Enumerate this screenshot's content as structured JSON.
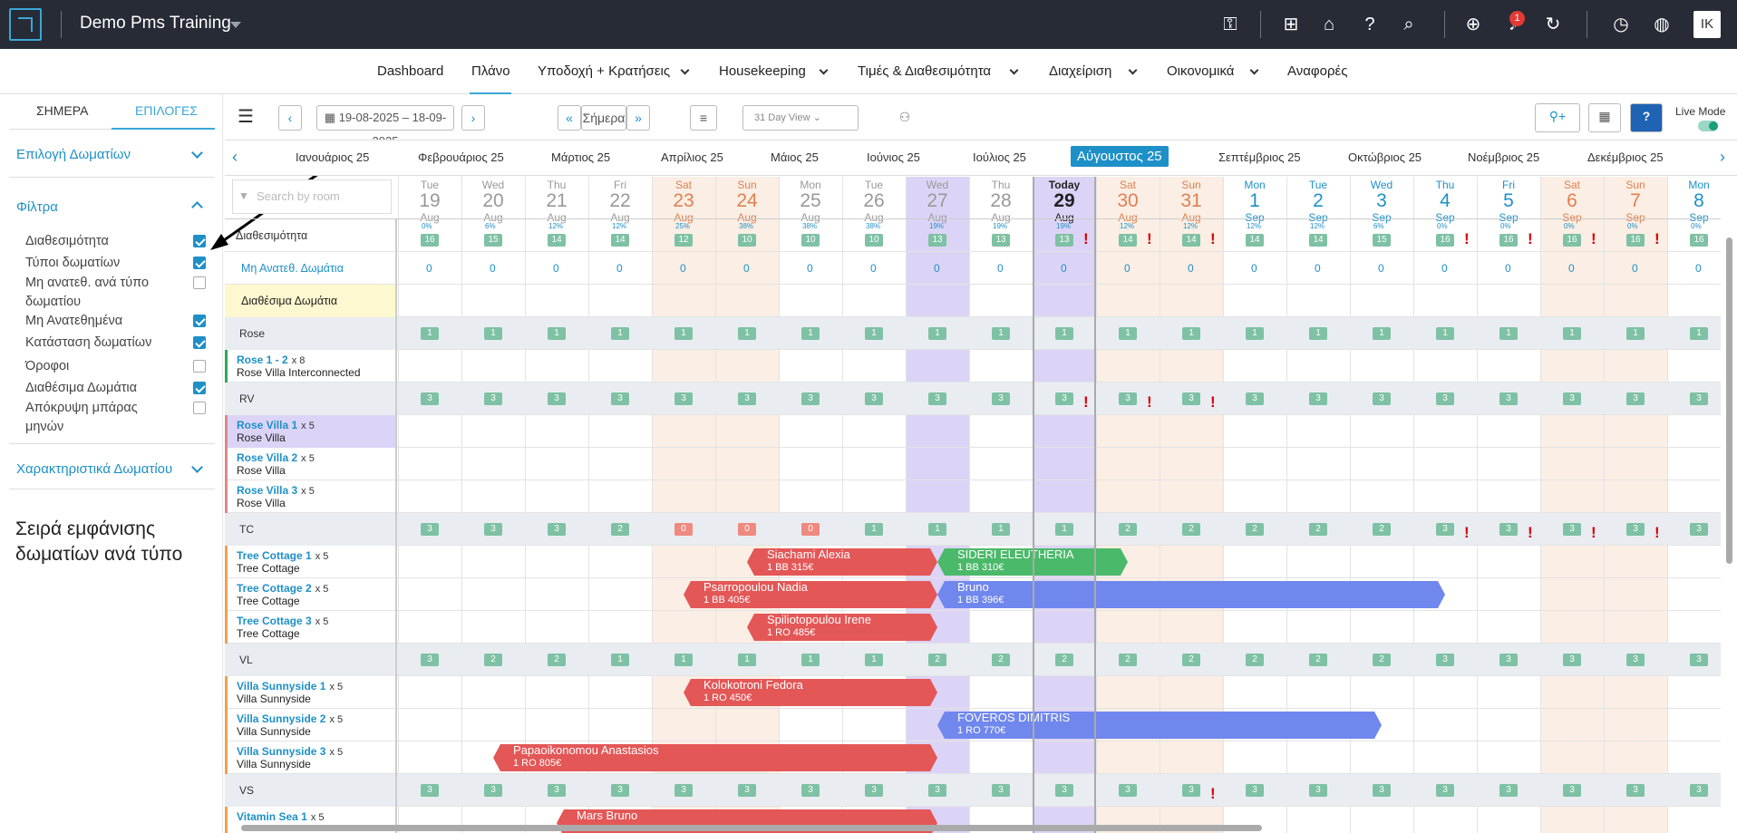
{
  "app": {
    "title": "Demo Pms Training",
    "user_initials": "IK",
    "notifications": "1"
  },
  "icons": [
    "key-icon",
    "apps-icon",
    "store-icon",
    "help-icon",
    "search-icon",
    "add-icon",
    "bell-icon",
    "refresh-icon",
    "history-icon",
    "globe-icon"
  ],
  "nav": {
    "items": [
      "Dashboard",
      "Πλάνο",
      "Υποδοχή + Κρατήσεις",
      "Housekeeping",
      "Τιμές & Διαθεσιμότητα",
      "Διαχείριση",
      "Οικονομικά",
      "Αναφορές"
    ]
  },
  "sidebar": {
    "tab_today": "ΣΗΜΕΡΑ",
    "tab_options": "ΕΠΙΛΟΓΕΣ",
    "room_select": "Επιλογή Δωματίων",
    "filters": "Φίλτρα",
    "room_features": "Χαρακτηριστικά Δωματίου",
    "filter_items": [
      {
        "label": "Διαθεσιμότητα",
        "on": true
      },
      {
        "label": "Τύποι δωματίων",
        "on": true
      },
      {
        "label": "Μη ανατεθ. ανά τύπο δωματίου",
        "on": false
      },
      {
        "label": "Μη Ανατεθημένα",
        "on": true
      },
      {
        "label": "Κατάσταση δωματίων",
        "on": true
      },
      {
        "label": "Όροφοι",
        "on": false
      },
      {
        "label": "Διαθέσιμα Δωμάτια",
        "on": true
      },
      {
        "label": "Απόκρυψη μπάρας μηνών",
        "on": false
      }
    ]
  },
  "annotation": "Σειρά εμφάνισης δωματίων ανά τύπο",
  "toolbar": {
    "date_range": "19-08-2025 – 18-09-2025",
    "today": "Σήμερα",
    "view": "31 Day View",
    "live_mode": "Live Mode"
  },
  "months": [
    "Ιανουάριος 25",
    "Φεβρουάριος 25",
    "Μάρτιος 25",
    "Απρίλιος 25",
    "Μάιος 25",
    "Ιούνιος 25",
    "Ιούλιος 25",
    "Αύγουστος 25",
    "Σεπτέμβριος 25",
    "Οκτώβριος 25",
    "Νοέμβριος 25",
    "Δεκέμβριος 25"
  ],
  "search_placeholder": "Search by room",
  "days": [
    {
      "d": "Tue",
      "n": "19",
      "m": "Aug"
    },
    {
      "d": "Wed",
      "n": "20",
      "m": "Aug"
    },
    {
      "d": "Thu",
      "n": "21",
      "m": "Aug"
    },
    {
      "d": "Fri",
      "n": "22",
      "m": "Aug"
    },
    {
      "d": "Sat",
      "n": "23",
      "m": "Aug"
    },
    {
      "d": "Sun",
      "n": "24",
      "m": "Aug"
    },
    {
      "d": "Mon",
      "n": "25",
      "m": "Aug"
    },
    {
      "d": "Tue",
      "n": "26",
      "m": "Aug"
    },
    {
      "d": "Wed",
      "n": "27",
      "m": "Aug"
    },
    {
      "d": "Thu",
      "n": "28",
      "m": "Aug"
    },
    {
      "d": "Today",
      "n": "29",
      "m": "Aug"
    },
    {
      "d": "Sat",
      "n": "30",
      "m": "Aug"
    },
    {
      "d": "Sun",
      "n": "31",
      "m": "Aug"
    },
    {
      "d": "Mon",
      "n": "1",
      "m": "Sep"
    },
    {
      "d": "Tue",
      "n": "2",
      "m": "Sep"
    },
    {
      "d": "Wed",
      "n": "3",
      "m": "Sep"
    },
    {
      "d": "Thu",
      "n": "4",
      "m": "Sep"
    },
    {
      "d": "Fri",
      "n": "5",
      "m": "Sep"
    },
    {
      "d": "Sat",
      "n": "6",
      "m": "Sep"
    },
    {
      "d": "Sun",
      "n": "7",
      "m": "Sep"
    },
    {
      "d": "Mon",
      "n": "8",
      "m": "Sep"
    }
  ],
  "availability": {
    "label": "Διαθεσιμότητα",
    "pct": [
      "0%",
      "6%",
      "12%",
      "12%",
      "25%",
      "38%",
      "38%",
      "38%",
      "19%",
      "19%",
      "19%",
      "12%",
      "12%",
      "12%",
      "12%",
      "6%",
      "0%",
      "0%",
      "0%",
      "0%",
      "0%"
    ],
    "counts": [
      "16",
      "15",
      "14",
      "14",
      "12",
      "10",
      "10",
      "10",
      "13",
      "13",
      "13",
      "14",
      "14",
      "14",
      "14",
      "15",
      "16",
      "16",
      "16",
      "16",
      "16"
    ]
  },
  "unassigned": {
    "label": "Μη Ανατεθ. Δωμάτια",
    "values": [
      "0",
      "0",
      "0",
      "0",
      "0",
      "0",
      "0",
      "0",
      "0",
      "0",
      "0",
      "0",
      "0",
      "0",
      "0",
      "0",
      "0",
      "0",
      "0",
      "0",
      "0"
    ]
  },
  "available_rooms": "Διαθέσιμα Δωμάτια",
  "groups": [
    {
      "code": "Rose",
      "counts": [
        "1",
        "1",
        "1",
        "1",
        "1",
        "1",
        "1",
        "1",
        "1",
        "1",
        "1",
        "1",
        "1",
        "1",
        "1",
        "1",
        "1",
        "1",
        "1",
        "1",
        "1"
      ],
      "rooms": [
        {
          "name": "Rose 1 - 2",
          "meta": "x 8",
          "type": "Rose Villa Interconnected"
        }
      ]
    },
    {
      "code": "RV",
      "counts": [
        "3",
        "3",
        "3",
        "3",
        "3",
        "3",
        "3",
        "3",
        "3",
        "3",
        "3",
        "3",
        "3",
        "3",
        "3",
        "3",
        "3",
        "3",
        "3",
        "3",
        "3"
      ],
      "rooms": [
        {
          "name": "Rose Villa 1",
          "meta": "x 5",
          "type": "Rose Villa"
        },
        {
          "name": "Rose Villa 2",
          "meta": "x 5",
          "type": "Rose Villa"
        },
        {
          "name": "Rose Villa 3",
          "meta": "x 5",
          "type": "Rose Villa"
        }
      ]
    },
    {
      "code": "TC",
      "counts": [
        "3",
        "3",
        "3",
        "2",
        "0",
        "0",
        "0",
        "1",
        "1",
        "1",
        "1",
        "2",
        "2",
        "2",
        "2",
        "2",
        "3",
        "3",
        "3",
        "3",
        "3"
      ],
      "rooms": [
        {
          "name": "Tree Cottage 1",
          "meta": "x 5",
          "type": "Tree Cottage"
        },
        {
          "name": "Tree Cottage 2",
          "meta": "x 5",
          "type": "Tree Cottage"
        },
        {
          "name": "Tree Cottage 3",
          "meta": "x 5",
          "type": "Tree Cottage"
        }
      ]
    },
    {
      "code": "VL",
      "counts": [
        "3",
        "2",
        "2",
        "1",
        "1",
        "1",
        "1",
        "1",
        "2",
        "2",
        "2",
        "2",
        "2",
        "2",
        "2",
        "2",
        "3",
        "3",
        "3",
        "3",
        "3"
      ],
      "rooms": [
        {
          "name": "Villa Sunnyside 1",
          "meta": "x 5",
          "type": "Villa Sunnyside"
        },
        {
          "name": "Villa Sunnyside 2",
          "meta": "x 5",
          "type": "Villa Sunnyside"
        },
        {
          "name": "Villa Sunnyside 3",
          "meta": "x 5",
          "type": "Villa Sunnyside"
        }
      ]
    },
    {
      "code": "VS",
      "counts": [
        "3",
        "3",
        "3",
        "3",
        "3",
        "3",
        "3",
        "3",
        "3",
        "3",
        "3",
        "3",
        "3",
        "3",
        "3",
        "3",
        "3",
        "3",
        "3",
        "3",
        "3"
      ],
      "rooms": [
        {
          "name": "Vitamin Sea 1",
          "meta": "x 5",
          "type": ""
        }
      ]
    }
  ],
  "bookings": [
    {
      "name": "Siachami Alexia",
      "info": "1  BB  315€",
      "color": "#e45757",
      "row": "tc1",
      "start": 5.5,
      "end": 8.5
    },
    {
      "name": "SIDERI ELEUTHERIA",
      "info": "1  BB  310€",
      "color": "#4bb96a",
      "row": "tc1",
      "start": 8.5,
      "end": 11.5
    },
    {
      "name": "Psarropoulou Nadia",
      "info": "1  BB  405€",
      "color": "#e45757",
      "row": "tc2",
      "start": 4.5,
      "end": 8.5
    },
    {
      "name": "Bruno",
      "info": "1  BB  396€",
      "color": "#7087ee",
      "row": "tc2",
      "start": 8.5,
      "end": 16.5
    },
    {
      "name": "Spiliotopoulou Irene",
      "info": "1  RO  485€",
      "color": "#e45757",
      "row": "tc3",
      "start": 5.5,
      "end": 8.5
    },
    {
      "name": "Kolokotroni Fedora",
      "info": "1  RO  450€",
      "color": "#e45757",
      "row": "vs1",
      "start": 4.5,
      "end": 8.5
    },
    {
      "name": "FOVEROS DIMITRIS",
      "info": "1  RO  770€",
      "color": "#7087ee",
      "row": "vs2",
      "start": 8.5,
      "end": 15.5
    },
    {
      "name": "Papaoikonomou Anastasios",
      "info": "1  RO  805€",
      "color": "#e45757",
      "row": "vs3",
      "start": 1.5,
      "end": 8.5
    },
    {
      "name": "Mars Bruno",
      "info": "",
      "color": "#e45757",
      "row": "vit1",
      "start": 2.5,
      "end": 8.5
    }
  ]
}
